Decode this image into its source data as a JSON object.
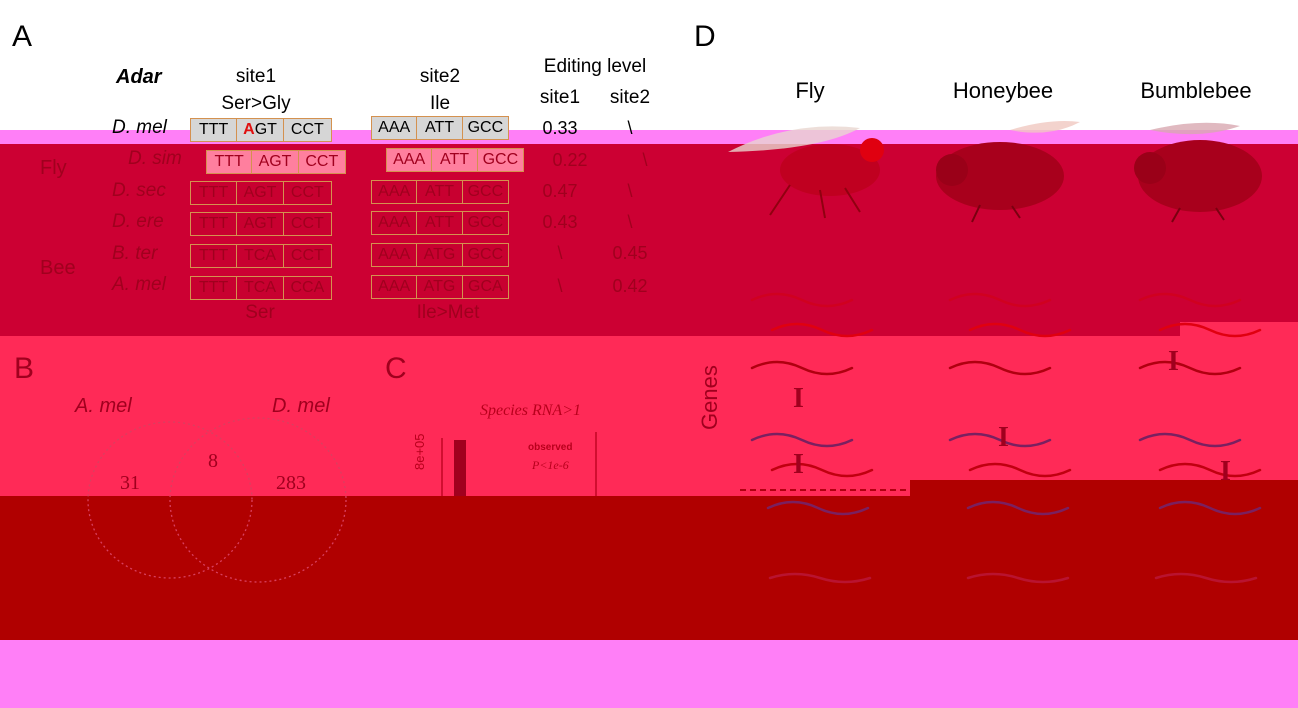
{
  "panels": {
    "a": "A",
    "b": "B",
    "c": "C",
    "d": "D"
  },
  "colors": {
    "magenta": "#ff7ff7",
    "pink": "#ff2a57",
    "red": "#cc0033",
    "dark_red": "#b00000",
    "codon_grey": "#d6d6d6",
    "codon_border": "#d4914f",
    "edited_base": "#e01010"
  },
  "panel_a": {
    "gene": "Adar",
    "site1": {
      "name": "site1",
      "change": "Ser>Gly"
    },
    "site2": {
      "name": "site2",
      "change": "Ile"
    },
    "editing_header": "Editing level",
    "level_cols": [
      "site1",
      "site2"
    ],
    "groups": [
      "Fly",
      "Bee"
    ],
    "rows": [
      {
        "species": "D. mel",
        "c1": [
          "TTT",
          "AGT",
          "CCT"
        ],
        "c2": [
          "AAA",
          "ATT",
          "GCC"
        ],
        "l1": "0.33",
        "l2": "\\"
      },
      {
        "species": "D. sim",
        "c1": [
          "TTT",
          "AGT",
          "CCT"
        ],
        "c2": [
          "AAA",
          "ATT",
          "GCC"
        ],
        "l1": "0.22",
        "l2": "\\"
      },
      {
        "species": "D. sec",
        "c1": [
          "TTT",
          "AGT",
          "CCT"
        ],
        "c2": [
          "AAA",
          "ATT",
          "GCC"
        ],
        "l1": "0.47",
        "l2": "\\"
      },
      {
        "species": "D. ere",
        "c1": [
          "TTT",
          "AGT",
          "CCT"
        ],
        "c2": [
          "AAA",
          "ATT",
          "GCC"
        ],
        "l1": "0.43",
        "l2": "\\"
      },
      {
        "species": "B. ter",
        "c1": [
          "TTT",
          "TCA",
          "CCT"
        ],
        "c2": [
          "AAA",
          "ATG",
          "GCC"
        ],
        "l1": "\\",
        "l2": "0.45"
      },
      {
        "species": "A. mel",
        "c1": [
          "TTT",
          "TCA",
          "CCA"
        ],
        "c2": [
          "AAA",
          "ATG",
          "GCA"
        ],
        "l1": "\\",
        "l2": "0.42"
      }
    ],
    "footer1": "Ser",
    "footer2": "Ile>Met"
  },
  "panel_b": {
    "left": "A. mel",
    "right": "D. mel",
    "only_left": "31",
    "shared": "8",
    "only_right": "283"
  },
  "panel_c": {
    "title": "Species RNA>1",
    "observed": "observed",
    "pvalue": "P<1e-6",
    "ytick": "8e+05"
  },
  "panel_d": {
    "organisms": [
      "Fly",
      "Honeybee",
      "Bumblebee"
    ],
    "genes_label": "Genes",
    "edit_marker": "I"
  }
}
